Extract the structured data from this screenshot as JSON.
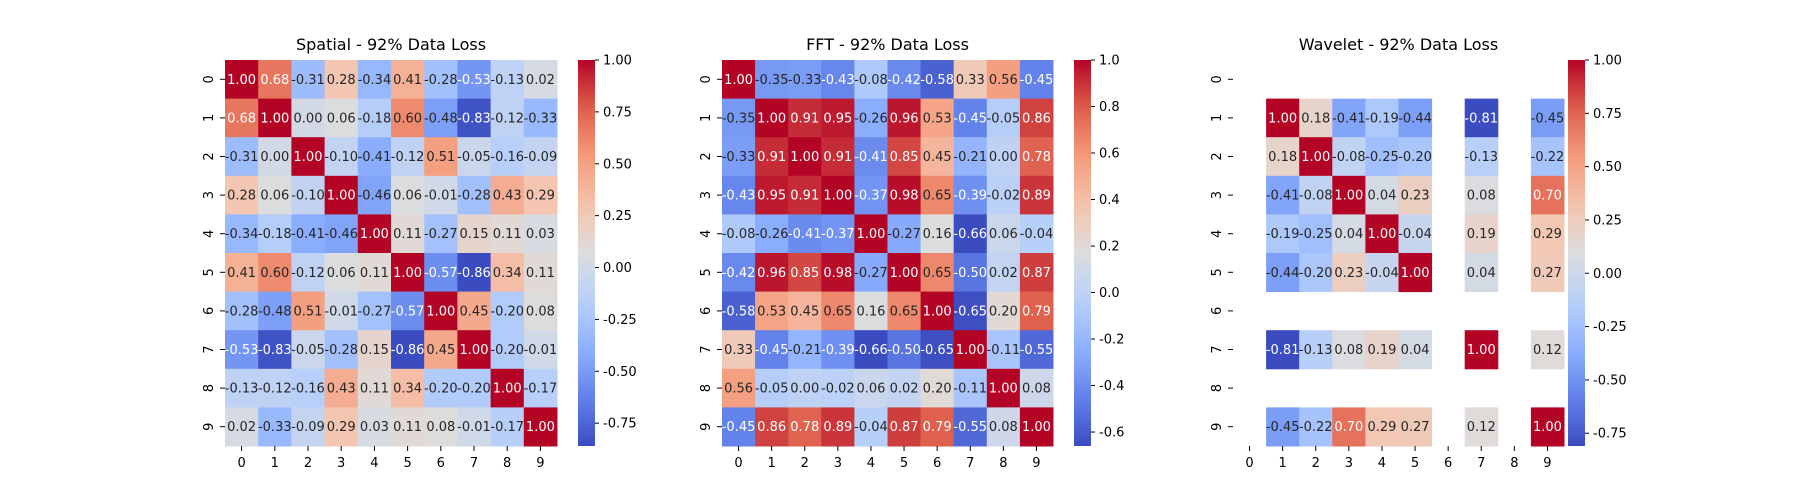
{
  "chart_data": [
    {
      "type": "heatmap",
      "title": "Spatial - 92% Data Loss",
      "row_labels": [
        "0",
        "1",
        "2",
        "3",
        "4",
        "5",
        "6",
        "7",
        "8",
        "9"
      ],
      "col_labels": [
        "0",
        "1",
        "2",
        "3",
        "4",
        "5",
        "6",
        "7",
        "8",
        "9"
      ],
      "matrix": [
        [
          1.0,
          0.68,
          -0.31,
          0.28,
          -0.34,
          0.41,
          -0.28,
          -0.53,
          -0.13,
          0.02
        ],
        [
          0.68,
          1.0,
          0.0,
          0.06,
          -0.18,
          0.6,
          -0.48,
          -0.83,
          -0.12,
          -0.33
        ],
        [
          -0.31,
          0.0,
          1.0,
          -0.1,
          -0.41,
          -0.12,
          0.51,
          -0.05,
          -0.16,
          -0.09
        ],
        [
          0.28,
          0.06,
          -0.1,
          1.0,
          -0.46,
          0.06,
          -0.01,
          -0.28,
          0.43,
          0.29
        ],
        [
          -0.34,
          -0.18,
          -0.41,
          -0.46,
          1.0,
          0.11,
          -0.27,
          0.15,
          0.11,
          0.03
        ],
        [
          0.41,
          0.6,
          -0.12,
          0.06,
          0.11,
          1.0,
          -0.57,
          -0.86,
          0.34,
          0.11
        ],
        [
          -0.28,
          -0.48,
          0.51,
          -0.01,
          -0.27,
          -0.57,
          1.0,
          0.45,
          -0.2,
          0.08
        ],
        [
          -0.53,
          -0.83,
          -0.05,
          -0.28,
          0.15,
          -0.86,
          0.45,
          1.0,
          -0.2,
          -0.01
        ],
        [
          -0.13,
          -0.12,
          -0.16,
          0.43,
          0.11,
          0.34,
          -0.2,
          -0.2,
          1.0,
          -0.17
        ],
        [
          0.02,
          -0.33,
          -0.09,
          0.29,
          0.03,
          0.11,
          0.08,
          -0.01,
          -0.17,
          1.0
        ]
      ],
      "colormap": "coolwarm",
      "vmin": -0.86,
      "vmax": 1.0,
      "colorbar_ticks": [
        "1.00",
        "0.75",
        "0.50",
        "0.25",
        "0.00",
        "-0.25",
        "-0.50",
        "-0.75"
      ],
      "colorbar_tick_values": [
        1.0,
        0.75,
        0.5,
        0.25,
        0.0,
        -0.25,
        -0.5,
        -0.75
      ]
    },
    {
      "type": "heatmap",
      "title": "FFT - 92% Data Loss",
      "row_labels": [
        "0",
        "1",
        "2",
        "3",
        "4",
        "5",
        "6",
        "7",
        "8",
        "9"
      ],
      "col_labels": [
        "0",
        "1",
        "2",
        "3",
        "4",
        "5",
        "6",
        "7",
        "8",
        "9"
      ],
      "matrix": [
        [
          1.0,
          -0.35,
          -0.33,
          -0.43,
          -0.08,
          -0.42,
          -0.58,
          0.33,
          0.56,
          -0.45
        ],
        [
          -0.35,
          1.0,
          0.91,
          0.95,
          -0.26,
          0.96,
          0.53,
          -0.45,
          -0.05,
          0.86
        ],
        [
          -0.33,
          0.91,
          1.0,
          0.91,
          -0.41,
          0.85,
          0.45,
          -0.21,
          0.0,
          0.78
        ],
        [
          -0.43,
          0.95,
          0.91,
          1.0,
          -0.37,
          0.98,
          0.65,
          -0.39,
          -0.02,
          0.89
        ],
        [
          -0.08,
          -0.26,
          -0.41,
          -0.37,
          1.0,
          -0.27,
          0.16,
          -0.66,
          0.06,
          -0.04
        ],
        [
          -0.42,
          0.96,
          0.85,
          0.98,
          -0.27,
          1.0,
          0.65,
          -0.5,
          0.02,
          0.87
        ],
        [
          -0.58,
          0.53,
          0.45,
          0.65,
          0.16,
          0.65,
          1.0,
          -0.65,
          0.2,
          0.79
        ],
        [
          0.33,
          -0.45,
          -0.21,
          -0.39,
          -0.66,
          -0.5,
          -0.65,
          1.0,
          -0.11,
          -0.55
        ],
        [
          0.56,
          -0.05,
          0.0,
          -0.02,
          0.06,
          0.02,
          0.2,
          -0.11,
          1.0,
          0.08
        ],
        [
          -0.45,
          0.86,
          0.78,
          0.89,
          -0.04,
          0.87,
          0.79,
          -0.55,
          0.08,
          1.0
        ]
      ],
      "colormap": "coolwarm",
      "vmin": -0.66,
      "vmax": 1.0,
      "colorbar_ticks": [
        "1.0",
        "0.8",
        "0.6",
        "0.4",
        "0.2",
        "0.0",
        "-0.2",
        "-0.4",
        "-0.6"
      ],
      "colorbar_tick_values": [
        1.0,
        0.8,
        0.6,
        0.4,
        0.2,
        0.0,
        -0.2,
        -0.4,
        -0.6
      ]
    },
    {
      "type": "heatmap",
      "title": "Wavelet - 92% Data Loss",
      "row_labels": [
        "0",
        "1",
        "2",
        "3",
        "4",
        "5",
        "6",
        "7",
        "8",
        "9"
      ],
      "col_labels": [
        "0",
        "1",
        "2",
        "3",
        "4",
        "5",
        "6",
        "7",
        "8",
        "9"
      ],
      "matrix": [
        [
          null,
          null,
          null,
          null,
          null,
          null,
          null,
          null,
          null,
          null
        ],
        [
          null,
          1.0,
          0.18,
          -0.41,
          -0.19,
          -0.44,
          null,
          -0.81,
          null,
          -0.45
        ],
        [
          null,
          0.18,
          1.0,
          -0.08,
          -0.25,
          -0.2,
          null,
          -0.13,
          null,
          -0.22
        ],
        [
          null,
          -0.41,
          -0.08,
          1.0,
          0.04,
          0.23,
          null,
          0.08,
          null,
          0.7
        ],
        [
          null,
          -0.19,
          -0.25,
          0.04,
          1.0,
          -0.04,
          null,
          0.19,
          null,
          0.29
        ],
        [
          null,
          -0.44,
          -0.2,
          0.23,
          -0.04,
          1.0,
          null,
          0.04,
          null,
          0.27
        ],
        [
          null,
          null,
          null,
          null,
          null,
          null,
          null,
          null,
          null,
          null
        ],
        [
          null,
          -0.81,
          -0.13,
          0.08,
          0.19,
          0.04,
          null,
          1.0,
          null,
          0.12
        ],
        [
          null,
          null,
          null,
          null,
          null,
          null,
          null,
          null,
          null,
          null
        ],
        [
          null,
          -0.45,
          -0.22,
          0.7,
          0.29,
          0.27,
          null,
          0.12,
          null,
          1.0
        ]
      ],
      "colormap": "coolwarm",
      "vmin": -0.81,
      "vmax": 1.0,
      "colorbar_ticks": [
        "1.00",
        "0.75",
        "0.50",
        "0.25",
        "0.00",
        "-0.25",
        "-0.50",
        "-0.75"
      ],
      "colorbar_tick_values": [
        1.0,
        0.75,
        0.5,
        0.25,
        0.0,
        -0.25,
        -0.5,
        -0.75
      ]
    }
  ]
}
